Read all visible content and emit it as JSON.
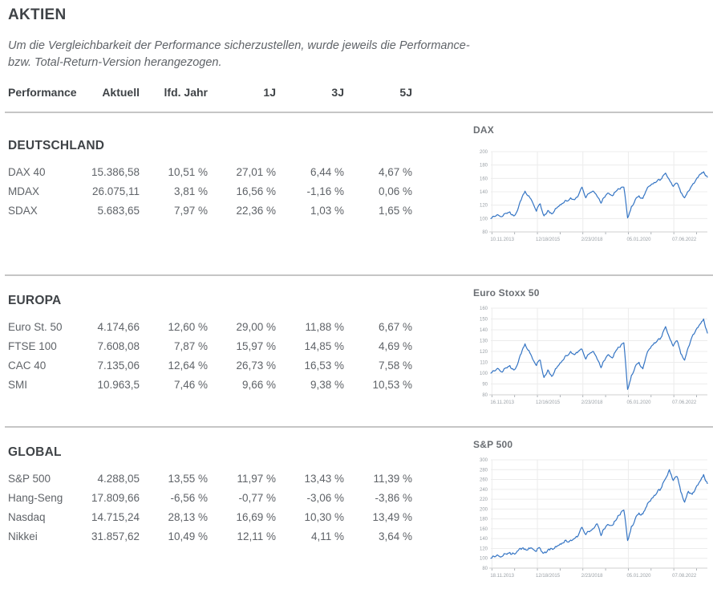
{
  "colors": {
    "accent": "#3575c4",
    "grid": "#ececec",
    "axis": "#cfcfcf",
    "text-dark": "#3f4347",
    "text-body": "#5f6368",
    "tick": "#9aa0a6",
    "divider": "#c6c6c6"
  },
  "page": {
    "title": "AKTIEN",
    "note_line1": "Um die Vergleichbarkeit der Performance sicherzustellen, wurde jeweils die Performance-",
    "note_line2": "bzw. Total-Return-Version herangezogen."
  },
  "table_header": {
    "col0": "Performance",
    "col1": "Aktuell",
    "col2": "lfd. Jahr",
    "col3": "1J",
    "col4": "3J",
    "col5": "5J"
  },
  "sections": [
    {
      "name": "DEUTSCHLAND",
      "rows": [
        {
          "label": "DAX 40",
          "aktuell": "15.386,58",
          "lfd": "10,51 %",
          "j1": "27,01 %",
          "j3": "6,44 %",
          "j5": "4,67 %"
        },
        {
          "label": "MDAX",
          "aktuell": "26.075,11",
          "lfd": "3,81 %",
          "j1": "16,56 %",
          "j3": "-1,16 %",
          "j5": "0,06 %"
        },
        {
          "label": "SDAX",
          "aktuell": "5.683,65",
          "lfd": "7,97 %",
          "j1": "22,36 %",
          "j3": "1,03 %",
          "j5": "1,65 %"
        }
      ]
    },
    {
      "name": "EUROPA",
      "rows": [
        {
          "label": "Euro St. 50",
          "aktuell": "4.174,66",
          "lfd": "12,60 %",
          "j1": "29,00 %",
          "j3": "11,88 %",
          "j5": "6,67 %"
        },
        {
          "label": "FTSE 100",
          "aktuell": "7.608,08",
          "lfd": "7,87 %",
          "j1": "15,97 %",
          "j3": "14,85 %",
          "j5": "4,69 %"
        },
        {
          "label": "CAC 40",
          "aktuell": "7.135,06",
          "lfd": "12,64 %",
          "j1": "26,73 %",
          "j3": "16,53 %",
          "j5": "7,58 %"
        },
        {
          "label": "SMI",
          "aktuell": "10.963,5",
          "lfd": "7,46 %",
          "j1": "9,66 %",
          "j3": "9,38 %",
          "j5": "10,53 %"
        }
      ]
    },
    {
      "name": "GLOBAL",
      "rows": [
        {
          "label": "S&P 500",
          "aktuell": "4.288,05",
          "lfd": "13,55 %",
          "j1": "11,97 %",
          "j3": "13,43 %",
          "j5": "11,39 %"
        },
        {
          "label": "Hang-Seng",
          "aktuell": "17.809,66",
          "lfd": "-6,56 %",
          "j1": "-0,77 %",
          "j3": "-3,06 %",
          "j5": "-3,86 %"
        },
        {
          "label": "Nasdaq",
          "aktuell": "14.715,24",
          "lfd": "28,13 %",
          "j1": "16,69 %",
          "j3": "10,30 %",
          "j5": "13,49 %"
        },
        {
          "label": "Nikkei",
          "aktuell": "31.857,62",
          "lfd": "10,49 %",
          "j1": "12,11 %",
          "j3": "4,11 %",
          "j5": "3,64 %"
        }
      ]
    }
  ],
  "chart_data": [
    {
      "type": "line",
      "title": "DAX",
      "line_color": "#3575c4",
      "ylim": [
        80,
        200
      ],
      "y_ticks": [
        200,
        180,
        160,
        140,
        120,
        100,
        80
      ],
      "x_labels": [
        "10.11.2013",
        "12/18/2015",
        "2/23/2018",
        "05.01.2020",
        "07.06.2022"
      ],
      "points": [
        100,
        103,
        105,
        103,
        108,
        110,
        104,
        112,
        128,
        141,
        134,
        124,
        111,
        122,
        104,
        112,
        107,
        115,
        119,
        123,
        126,
        131,
        128,
        134,
        147,
        131,
        138,
        141,
        133,
        123,
        132,
        138,
        134,
        141,
        144,
        147,
        101,
        118,
        128,
        134,
        130,
        143,
        149,
        154,
        158,
        160,
        168,
        158,
        148,
        153,
        139,
        131,
        141,
        150,
        158,
        166,
        170,
        162
      ]
    },
    {
      "type": "line",
      "title": "Euro Stoxx 50",
      "line_color": "#3575c4",
      "ylim": [
        80,
        160
      ],
      "y_ticks": [
        160,
        150,
        140,
        130,
        120,
        110,
        100,
        90,
        80
      ],
      "x_labels": [
        "16.11.2013",
        "12/16/2015",
        "2/23/2018",
        "05.01.2020",
        "07.06.2022"
      ],
      "points": [
        100,
        102,
        104,
        101,
        105,
        107,
        103,
        108,
        118,
        127,
        121,
        113,
        107,
        112,
        96,
        103,
        97,
        104,
        108,
        112,
        116,
        120,
        117,
        120,
        122,
        113,
        118,
        120,
        113,
        105,
        112,
        117,
        114,
        121,
        124,
        128,
        85,
        98,
        106,
        110,
        104,
        117,
        123,
        128,
        131,
        134,
        143,
        133,
        125,
        130,
        118,
        112,
        124,
        134,
        140,
        145,
        150,
        137
      ]
    },
    {
      "type": "line",
      "title": "S&P 500",
      "line_color": "#3575c4",
      "ylim": [
        80,
        300
      ],
      "y_ticks": [
        300,
        280,
        260,
        240,
        220,
        200,
        180,
        160,
        140,
        120,
        100,
        80
      ],
      "x_labels": [
        "18.11.2013",
        "12/18/2015",
        "2/23/2018",
        "05.01.2020",
        "07.08.2022"
      ],
      "points": [
        100,
        103,
        105,
        104,
        109,
        112,
        110,
        115,
        118,
        119,
        121,
        119,
        114,
        120,
        111,
        117,
        120,
        124,
        127,
        131,
        134,
        137,
        140,
        146,
        163,
        148,
        154,
        160,
        170,
        146,
        160,
        168,
        167,
        178,
        188,
        198,
        136,
        165,
        180,
        192,
        190,
        205,
        216,
        228,
        238,
        245,
        262,
        280,
        258,
        266,
        235,
        214,
        236,
        230,
        244,
        256,
        270,
        252
      ]
    }
  ]
}
